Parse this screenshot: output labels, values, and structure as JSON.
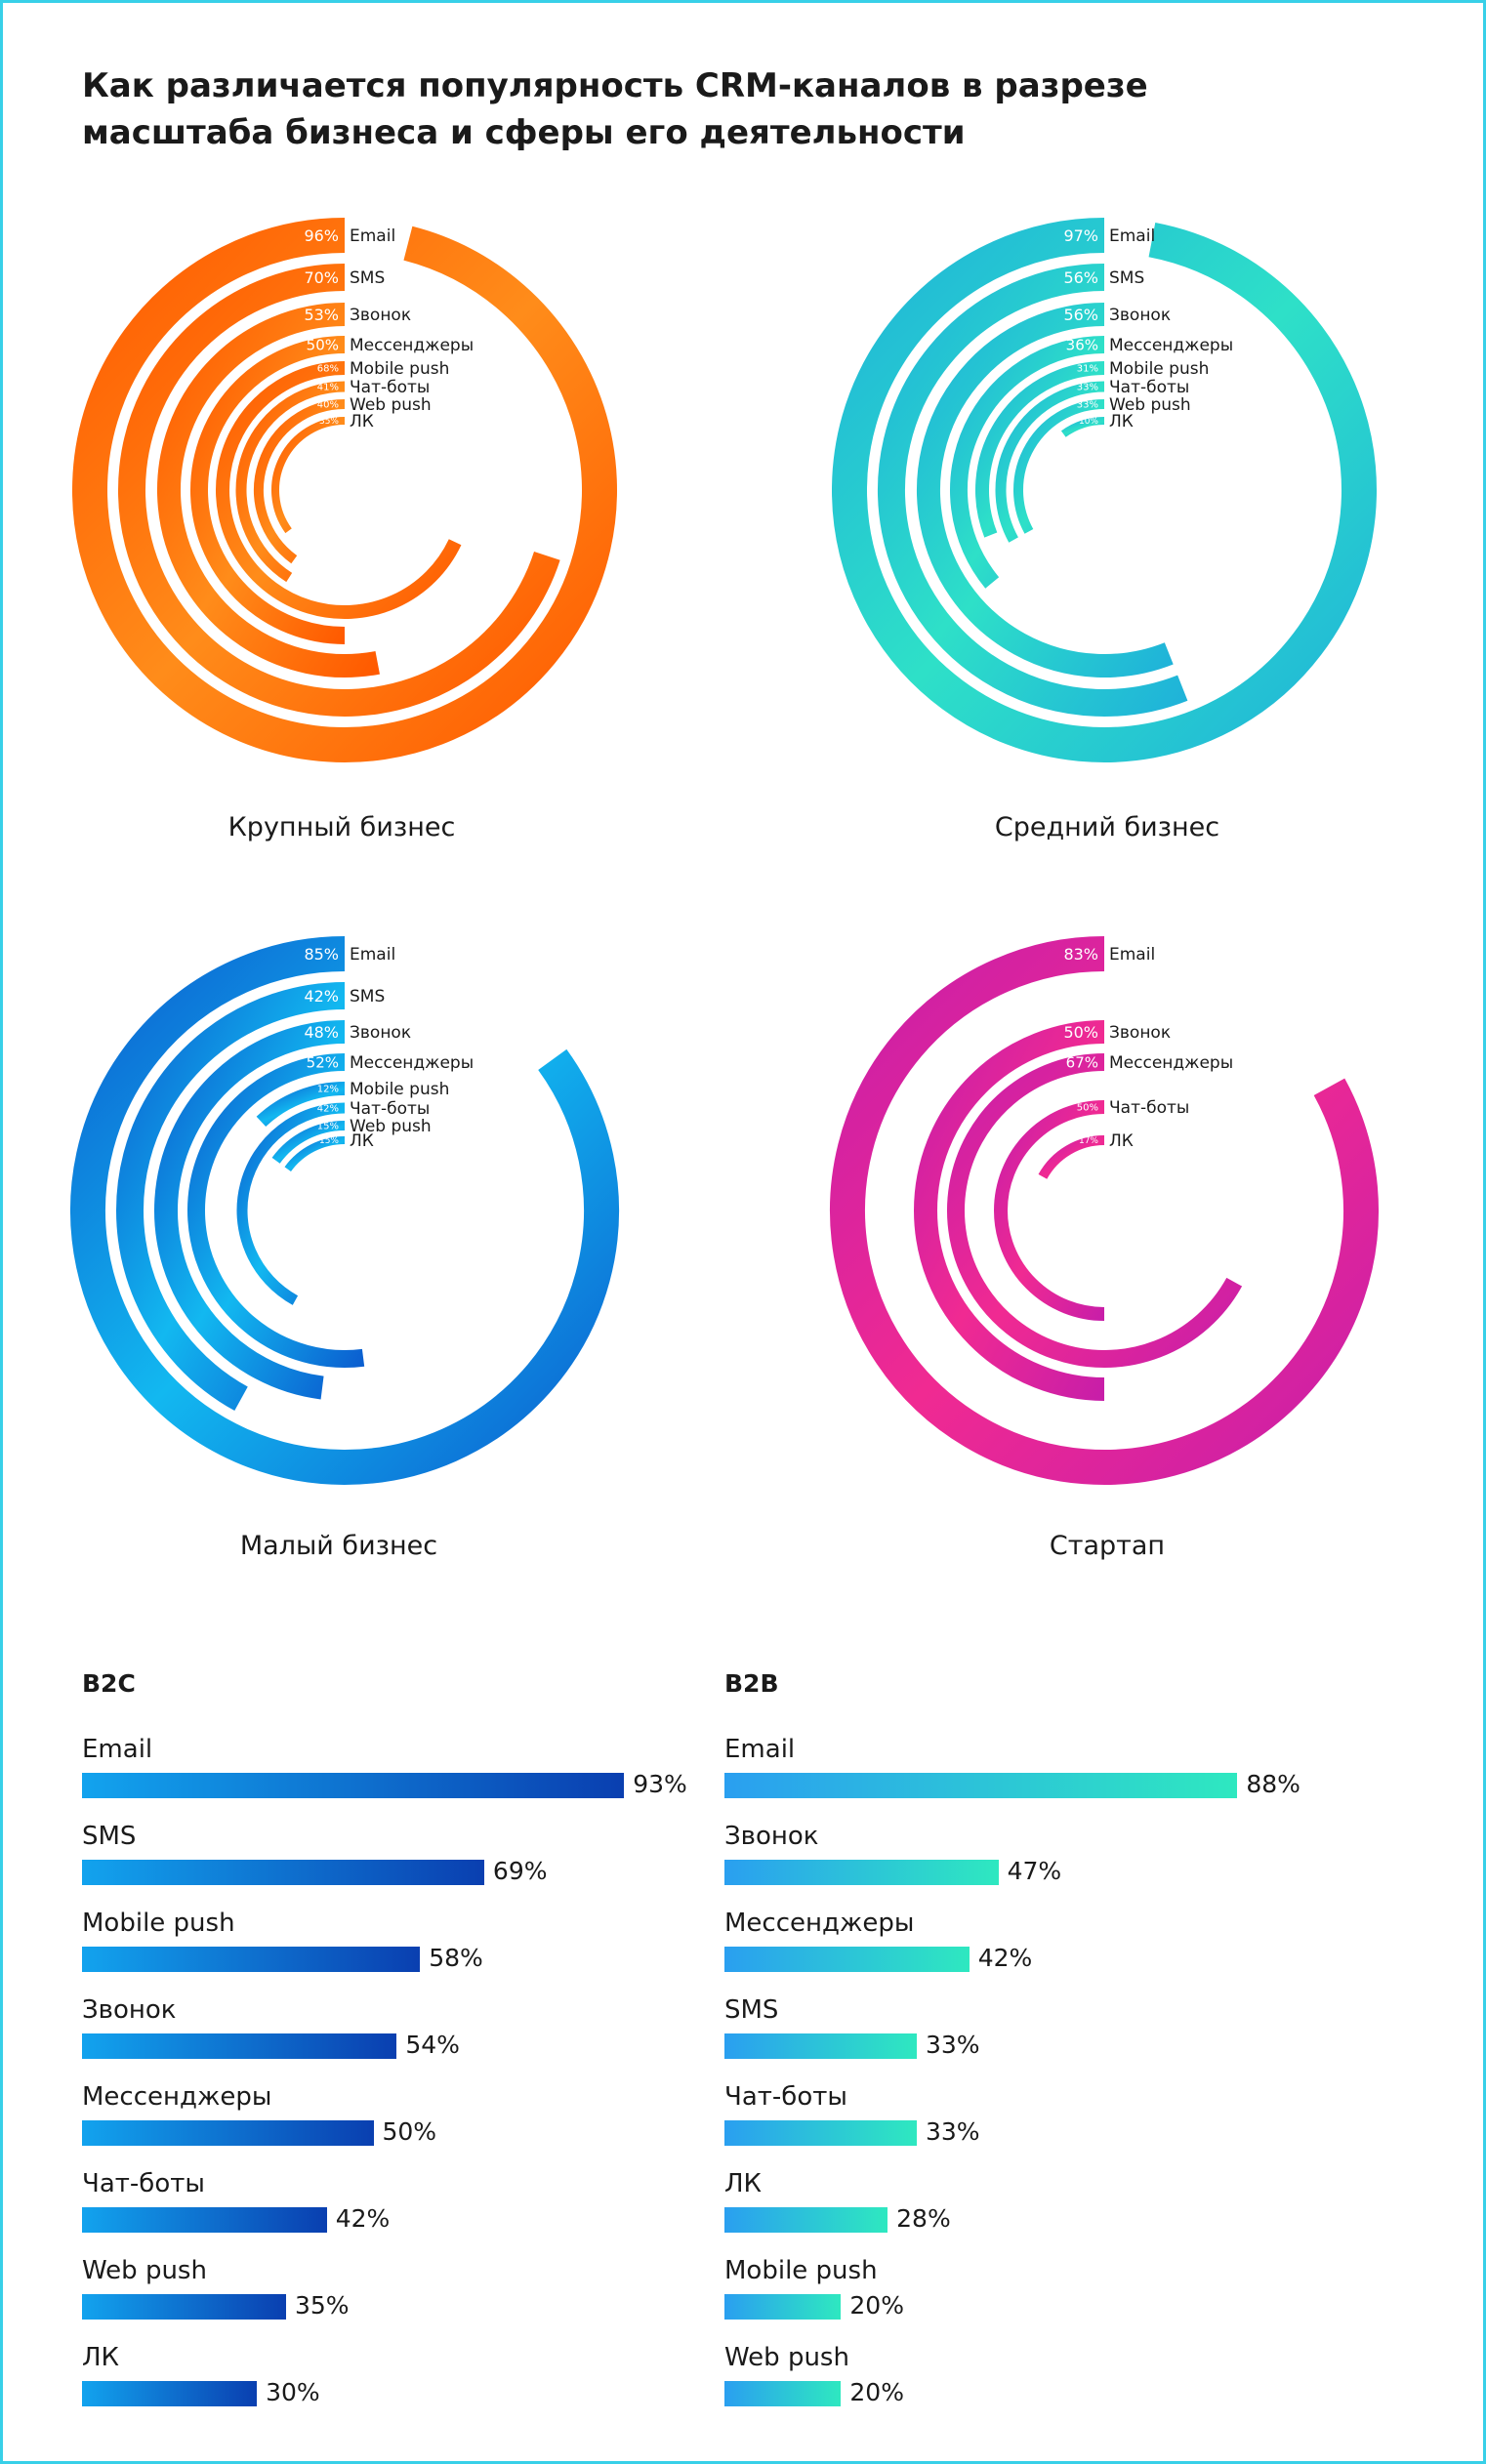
{
  "title": {
    "line1": "Как различается популярность CRM-каналов в разрезе",
    "line2": "масштаба бизнеса и сферы его деятельности"
  },
  "chart_data": [
    {
      "type": "radial-bar",
      "title": "Крупный бизнес",
      "gradient": [
        "#ff5a00",
        "#ff8c1a"
      ],
      "categories": [
        "Email",
        "SMS",
        "Звонок",
        "Мессенджеры",
        "Mobile push",
        "Чат-боты",
        "Web push",
        "ЛК"
      ],
      "values": [
        96,
        70,
        53,
        50,
        68,
        41,
        40,
        35
      ],
      "value_labels": [
        "96%",
        "70%",
        "53%",
        "50%",
        "68%",
        "41%",
        "40%",
        "35%"
      ]
    },
    {
      "type": "radial-bar",
      "title": "Средний бизнес",
      "gradient": [
        "#1fb3d9",
        "#2ee0c8"
      ],
      "categories": [
        "Email",
        "SMS",
        "Звонок",
        "Мессенджеры",
        "Mobile push",
        "Чат-боты",
        "Web push",
        "ЛК"
      ],
      "values": [
        97,
        56,
        56,
        36,
        31,
        33,
        33,
        10
      ],
      "value_labels": [
        "97%",
        "56%",
        "56%",
        "36%",
        "31%",
        "33%",
        "33%",
        "10%"
      ]
    },
    {
      "type": "radial-bar",
      "title": "Малый бизнес",
      "gradient": [
        "#0b5fd0",
        "#12b8f0"
      ],
      "categories": [
        "Email",
        "SMS",
        "Звонок",
        "Мессенджеры",
        "Mobile push",
        "Чат-боты",
        "Web push",
        "ЛК"
      ],
      "values": [
        85,
        42,
        48,
        52,
        12,
        42,
        15,
        15
      ],
      "value_labels": [
        "85%",
        "42%",
        "48%",
        "52%",
        "12%",
        "42%",
        "15%",
        "15%"
      ]
    },
    {
      "type": "radial-bar",
      "title": "Стартап",
      "gradient": [
        "#c81ea8",
        "#f02a92"
      ],
      "categories": [
        "Email",
        "Звонок",
        "Мессенджеры",
        "Чат-боты",
        "ЛК"
      ],
      "values": [
        83,
        50,
        67,
        50,
        17
      ],
      "value_labels": [
        "83%",
        "50%",
        "67%",
        "50%",
        "17%"
      ]
    },
    {
      "type": "bar",
      "title": "B2C",
      "gradient": [
        "#12a3ee",
        "#0a3fb0"
      ],
      "categories": [
        "Email",
        "SMS",
        "Mobile push",
        "Звонок",
        "Мессенджеры",
        "Чат-боты",
        "Web push",
        "ЛК"
      ],
      "values": [
        93,
        69,
        58,
        54,
        50,
        42,
        35,
        30
      ],
      "value_labels": [
        "93%",
        "69%",
        "58%",
        "54%",
        "50%",
        "42%",
        "35%",
        "30%"
      ]
    },
    {
      "type": "bar",
      "title": "B2B",
      "gradient": [
        "#2a9ff0",
        "#2ee8c0"
      ],
      "categories": [
        "Email",
        "Звонок",
        "Мессенджеры",
        "SMS",
        "Чат-боты",
        "ЛК",
        "Mobile push",
        "Web push"
      ],
      "values": [
        88,
        47,
        42,
        33,
        33,
        28,
        20,
        20
      ],
      "value_labels": [
        "88%",
        "47%",
        "42%",
        "33%",
        "33%",
        "28%",
        "20%",
        "20%"
      ]
    }
  ]
}
